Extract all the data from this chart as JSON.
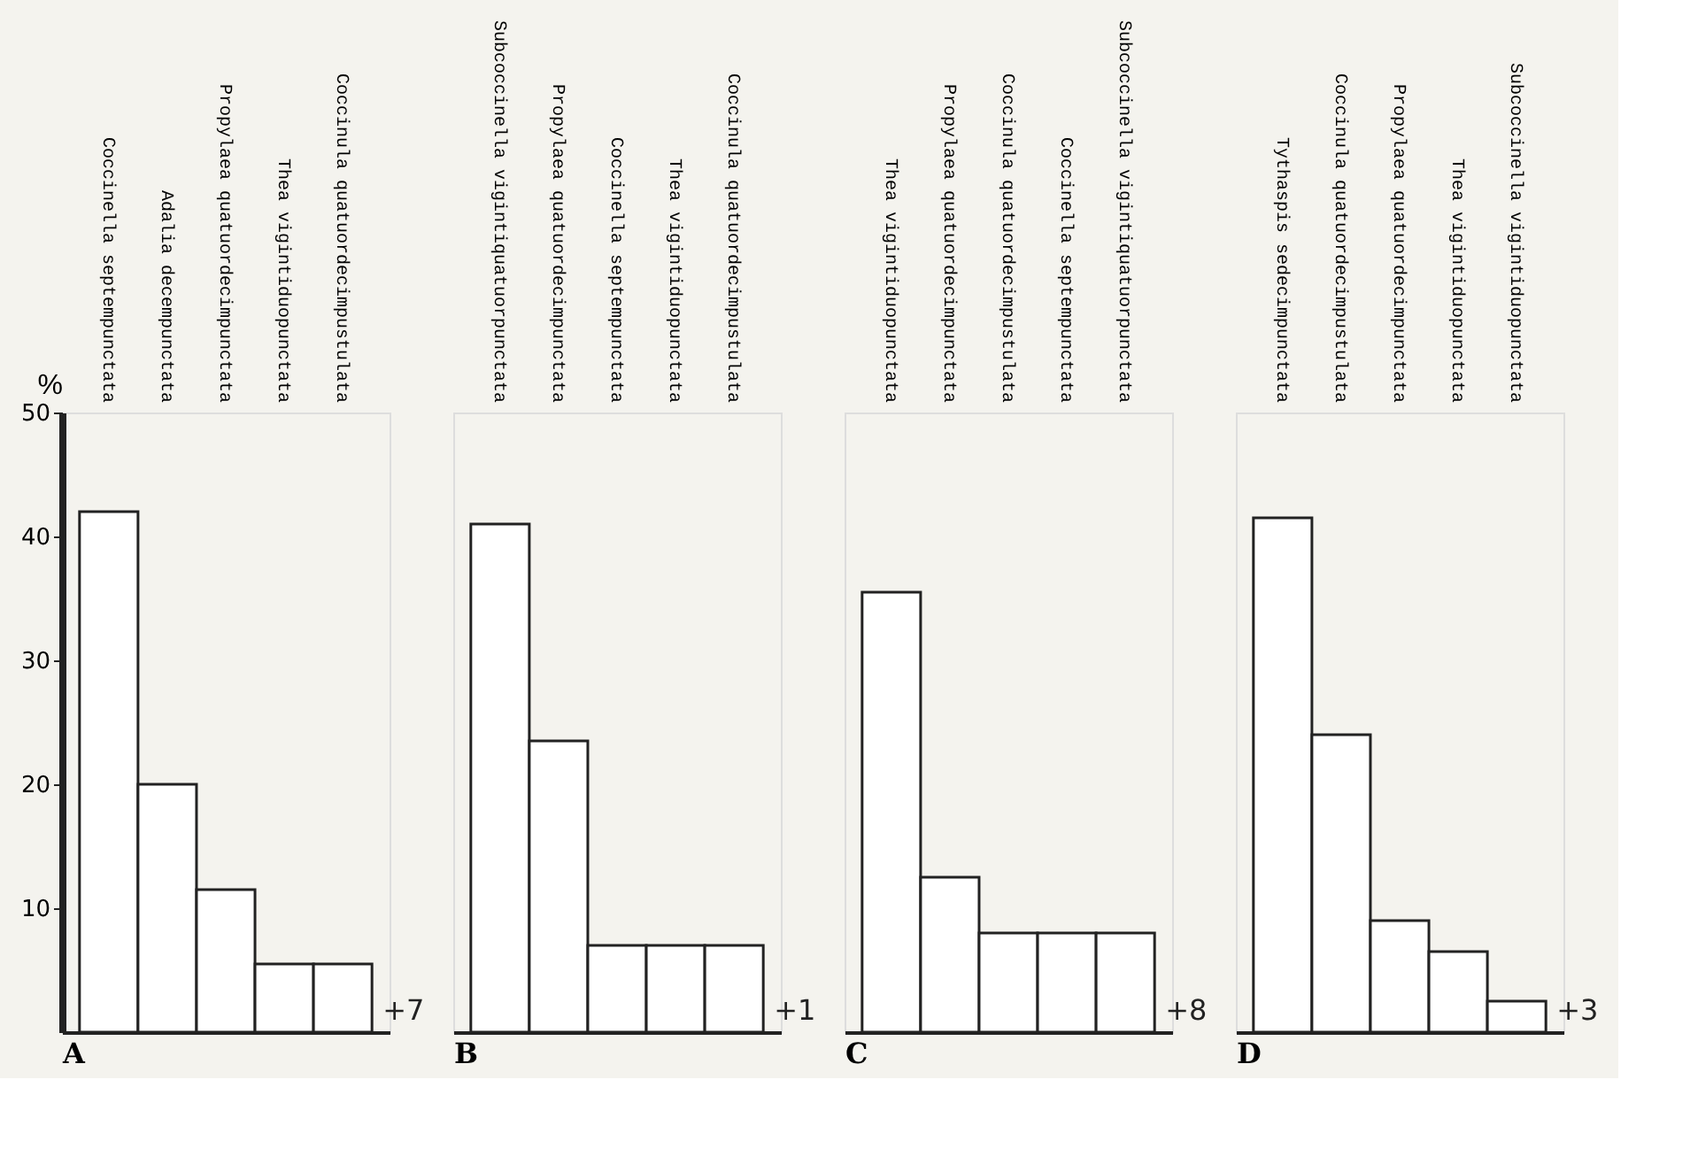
{
  "chart_data": [
    {
      "type": "bar",
      "xlabel": "A",
      "ylabel": "%",
      "categories": [
        "Coccinella septempunctata",
        "Adalia decempunctata",
        "Propylaea quatuordecimpunctata",
        "Thea vigintiduopunctata",
        "Coccinula quatuordecimpustulata"
      ],
      "values": [
        42,
        20,
        11.5,
        5.5,
        5.5
      ],
      "color": "#ffffff",
      "ylim": [
        0,
        50
      ],
      "yticks": [
        10,
        20,
        30,
        40,
        50
      ],
      "grid": false,
      "annotations": [
        "+7"
      ]
    },
    {
      "type": "bar",
      "xlabel": "B",
      "categories": [
        "Subcoccinella vigintiquatuorpunctata",
        "Propylaea quatuordecimpunctata",
        "Coccinella septempunctata",
        "Thea vigintiduopunctata",
        "Coccinula quatuordecimpustulata"
      ],
      "values": [
        41,
        23.5,
        7,
        7,
        7
      ],
      "color": "#ffffff",
      "ylim": [
        0,
        50
      ],
      "tick_labels": "x",
      "grid": false,
      "annotations": [
        "+1"
      ]
    },
    {
      "type": "bar",
      "xlabel": "C",
      "categories": [
        "Thea vigintiduopunctata",
        "Propylaea quatuordecimpunctata",
        "Coccinula quatuordecimpustulata",
        "Coccinella septempunctata",
        "Subcoccinella vigintiquatuorpunctata"
      ],
      "values": [
        35.5,
        12.5,
        8,
        8,
        8
      ],
      "color": "#ffffff",
      "ylim": [
        0,
        50
      ],
      "tick_labels": "x",
      "grid": false,
      "annotations": [
        "+8"
      ]
    },
    {
      "type": "bar",
      "xlabel": "D",
      "categories": [
        "Tythaspis sedecimpunctata",
        "Coccinula quatuordecimpustulata",
        "Propylaea quatuordecimpunctata",
        "Thea vigintiduopunctata",
        "Subcoccinella vigintiduopunctata"
      ],
      "values": [
        41.5,
        24,
        9,
        6.5,
        2.5
      ],
      "color": "#ffffff",
      "ylim": [
        0,
        50
      ],
      "tick_labels": "x",
      "grid": false,
      "annotations": [
        "+3"
      ]
    }
  ]
}
